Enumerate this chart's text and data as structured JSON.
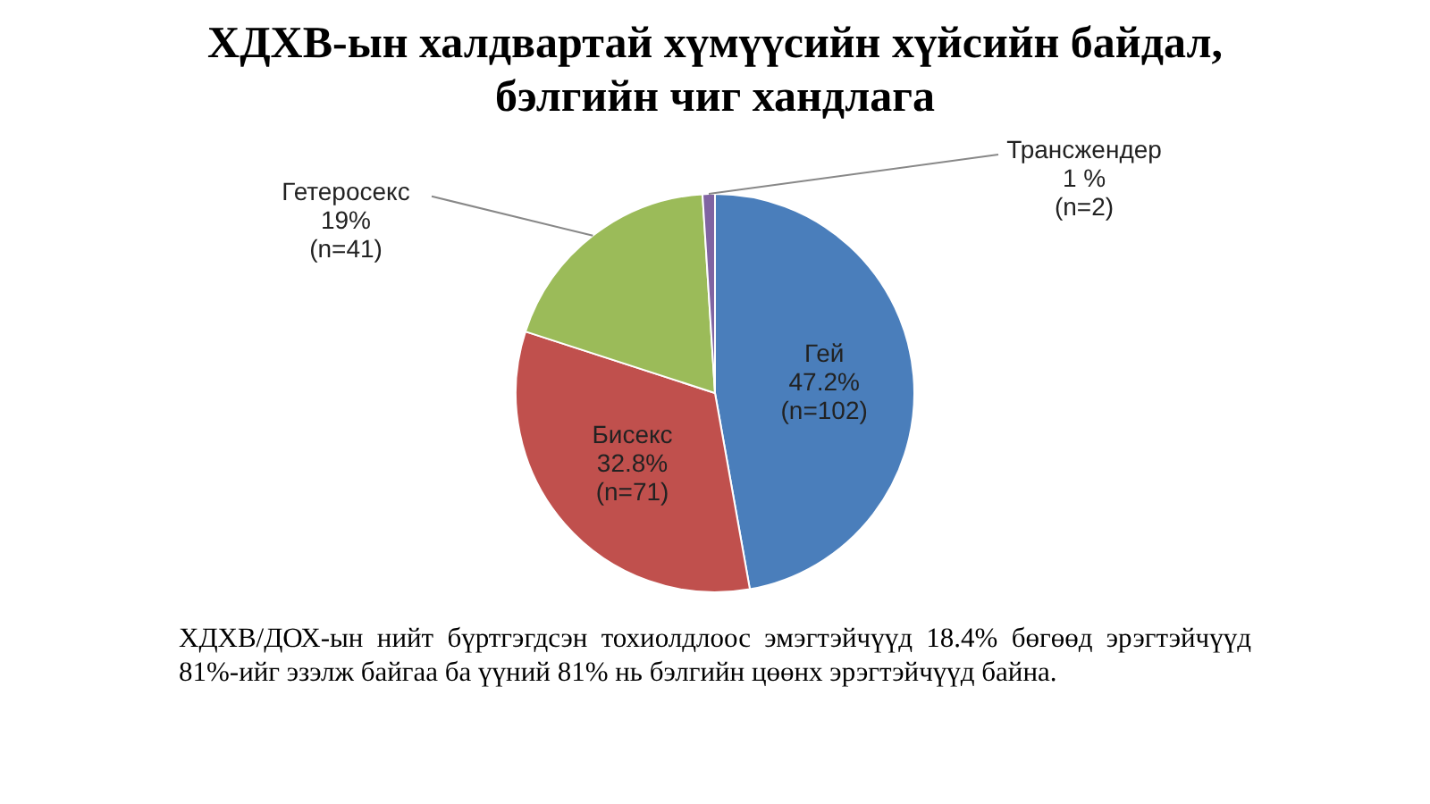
{
  "chart_data": {
    "type": "pie",
    "title": "ХДХВ-ын халдвартай хүмүүсийн хүйсийн байдал,\nбэлгийн чиг хандлага",
    "categories": [
      "Гей",
      "Бисекс",
      "Гетеросекс",
      "Трансжендер"
    ],
    "values": [
      47.2,
      32.8,
      19,
      1
    ],
    "colors": [
      "#4a7ebb",
      "#c0504d",
      "#9bbb59",
      "#8064a2"
    ],
    "value_labels": [
      "47.2%\n(n=102)",
      "32.8%\n(n=71)",
      "19%\n(n=41)",
      "1 %\n(n=2)"
    ],
    "annotations": [
      "ХДХВ/ДОХ-ын нийт бүртгэгдсэн тохиолдлоос эмэгтэйчүүд 18.4% бөгөөд эрэгтэйчүүд 81%-ийг эзэлж байгаа ба үүний 81% нь бэлгийн цөөнх эрэгтэйчүүд байна."
    ]
  }
}
